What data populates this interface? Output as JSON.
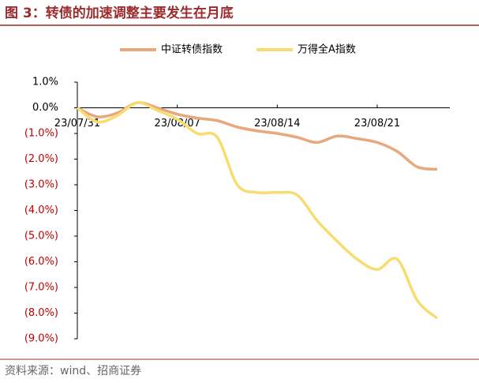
{
  "chart_data": {
    "type": "line",
    "title": "图 3：转债的加速调整主要发生在月底",
    "source": "资料来源：wind、招商证券",
    "categories": [
      "23/07/31",
      null,
      null,
      null,
      null,
      "23/08/07",
      null,
      null,
      null,
      null,
      "23/08/14",
      null,
      null,
      null,
      null,
      "23/08/21",
      null,
      null,
      null
    ],
    "series": [
      {
        "name": "中证转债指数",
        "color": "#e8a77c",
        "values": [
          0,
          -0.35,
          -0.2,
          0.2,
          0.0,
          -0.25,
          -0.4,
          -0.5,
          -0.75,
          -0.9,
          -1.0,
          -1.15,
          -1.35,
          -1.1,
          -1.2,
          -1.35,
          -1.7,
          -2.3,
          -2.4
        ]
      },
      {
        "name": "万得全A指数",
        "color": "#f7dc6f",
        "values": [
          0,
          -0.55,
          -0.3,
          0.2,
          -0.1,
          -0.45,
          -1.0,
          -1.15,
          -3.0,
          -3.3,
          -3.3,
          -3.4,
          -4.4,
          -5.2,
          -5.9,
          -6.3,
          -5.9,
          -7.5,
          -8.2
        ]
      }
    ],
    "ylim": [
      -9,
      1
    ],
    "yticks": [
      {
        "value": 1,
        "label": "1.0%"
      },
      {
        "value": 0,
        "label": "0.0%"
      },
      {
        "value": -1,
        "label": "(1.0%)"
      },
      {
        "value": -2,
        "label": "(2.0%)"
      },
      {
        "value": -3,
        "label": "(3.0%)"
      },
      {
        "value": -4,
        "label": "(4.0%)"
      },
      {
        "value": -5,
        "label": "(5.0%)"
      },
      {
        "value": -6,
        "label": "(6.0%)"
      },
      {
        "value": -7,
        "label": "(7.0%)"
      },
      {
        "value": -8,
        "label": "(8.0%)"
      },
      {
        "value": -9,
        "label": "(9.0%)"
      }
    ],
    "legend": "top"
  }
}
